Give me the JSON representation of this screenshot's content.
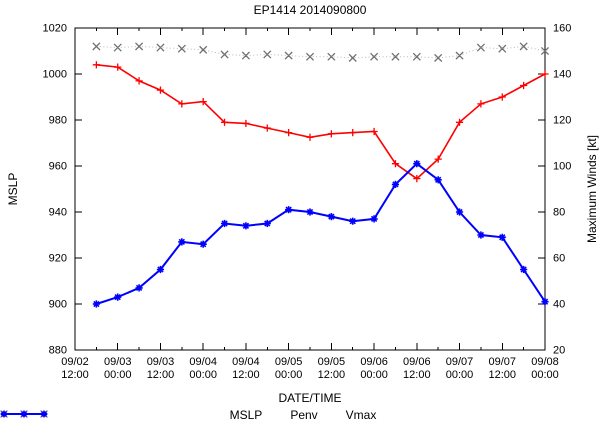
{
  "chart_data": {
    "type": "line",
    "title": "EP1414 2014090800",
    "xlabel": "DATE/TIME",
    "ylabel_left": "MSLP",
    "ylabel_right": "Maximum Winds [kt]",
    "ylim_left": [
      880,
      1020
    ],
    "ylim_right": [
      20,
      160
    ],
    "yticks_left": [
      880,
      900,
      920,
      940,
      960,
      980,
      1000,
      1020
    ],
    "yticks_right": [
      20,
      40,
      60,
      80,
      100,
      120,
      140,
      160
    ],
    "xlim": [
      "09/02 12:00",
      "09/08 00:00"
    ],
    "xticks": [
      "09/02 12:00",
      "09/03 00:00",
      "09/03 12:00",
      "09/04 00:00",
      "09/04 12:00",
      "09/05 00:00",
      "09/05 12:00",
      "09/06 00:00",
      "09/06 12:00",
      "09/07 00:00",
      "09/07 12:00",
      "09/08 00:00"
    ],
    "grid": false,
    "legend_position": "bottom",
    "x": [
      "09/02 18:00",
      "09/03 00:00",
      "09/03 06:00",
      "09/03 12:00",
      "09/03 18:00",
      "09/04 00:00",
      "09/04 06:00",
      "09/04 12:00",
      "09/04 18:00",
      "09/05 00:00",
      "09/05 06:00",
      "09/05 12:00",
      "09/05 18:00",
      "09/06 00:00",
      "09/06 06:00",
      "09/06 12:00",
      "09/06 18:00",
      "09/07 00:00",
      "09/07 06:00",
      "09/07 12:00",
      "09/07 18:00",
      "09/08 00:00"
    ],
    "series": [
      {
        "name": "MSLP",
        "axis": "left",
        "color": "#ff0000",
        "line": "solid",
        "line_width": 1.6,
        "marker": "plus",
        "values": [
          1004,
          1003,
          997,
          993,
          987,
          988,
          979,
          978.5,
          976.5,
          974.5,
          972.5,
          974,
          974.5,
          975,
          961,
          954.5,
          963,
          979,
          987,
          990,
          995,
          1000
        ]
      },
      {
        "name": "Penv",
        "axis": "left",
        "color": "#b8b8b8",
        "marker_color": "#707070",
        "line": "dotted",
        "line_width": 1,
        "marker": "cross",
        "values": [
          1012,
          1011.5,
          1012,
          1011.5,
          1011,
          1010.5,
          1008.5,
          1008,
          1008.5,
          1008,
          1007.5,
          1007.5,
          1007,
          1007.5,
          1007.5,
          1007.5,
          1007,
          1008,
          1011.5,
          1011,
          1012,
          1010
        ]
      },
      {
        "name": "Vmax",
        "axis": "right",
        "color": "#0000ff",
        "line": "solid",
        "line_width": 2,
        "marker": "asterisk",
        "values": [
          40,
          43,
          47,
          55,
          67,
          66,
          75,
          74,
          75,
          81,
          80,
          78,
          76,
          77,
          92,
          101,
          94,
          80,
          70,
          69,
          55,
          41
        ]
      }
    ]
  }
}
